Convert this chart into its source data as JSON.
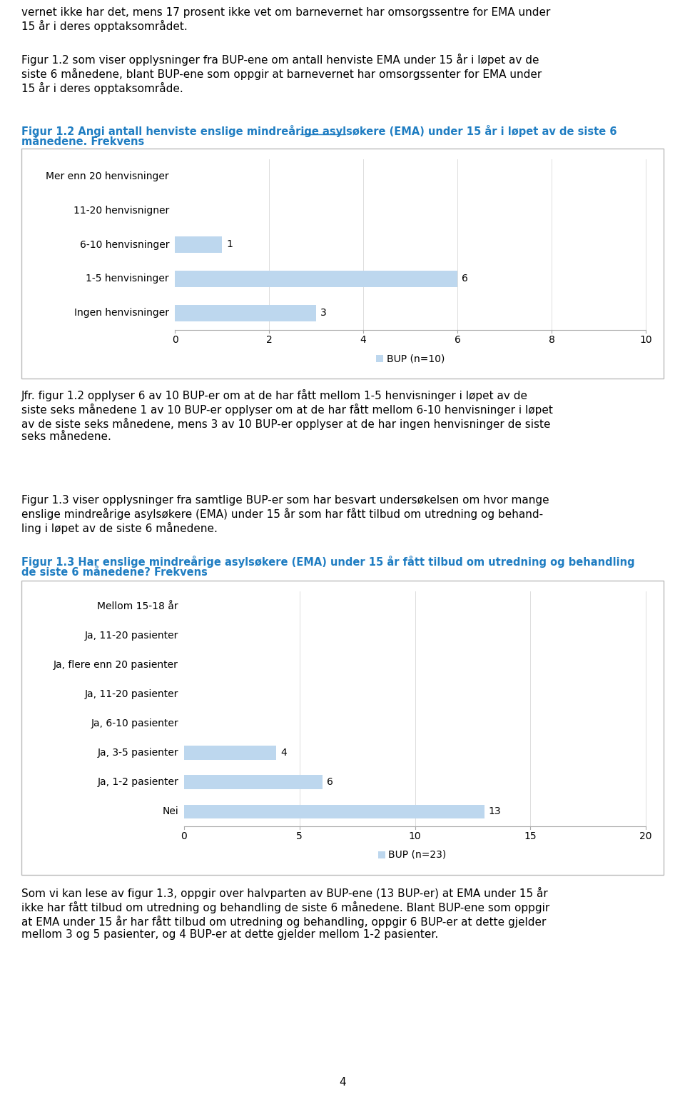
{
  "page_bg": "#ffffff",
  "text_color": "#000000",
  "link_color": "#1F7DC2",
  "chart1_categories": [
    "Mer enn 20 henvisninger",
    "11-20 henvisnigner",
    "6-10 henvisninger",
    "1-5 henvisninger",
    "Ingen henvisninger"
  ],
  "chart1_values": [
    0,
    0,
    1,
    6,
    3
  ],
  "chart1_xlim": [
    0,
    10
  ],
  "chart1_xticks": [
    0,
    2,
    4,
    6,
    8,
    10
  ],
  "chart1_legend": "BUP (n=10)",
  "chart1_bar_color": "#BDD7EE",
  "chart2_categories": [
    "Mellom 15-18 år",
    "Ja, 11-20 pasienter",
    "Ja, flere enn 20 pasienter",
    "Ja, 11-20 pasienter",
    "Ja, 6-10 pasienter",
    "Ja, 3-5 pasienter",
    "Ja, 1-2 pasienter",
    "Nei"
  ],
  "chart2_values": [
    0,
    0,
    0,
    0,
    0,
    4,
    6,
    13
  ],
  "chart2_xlim": [
    0,
    20
  ],
  "chart2_xticks": [
    0,
    5,
    10,
    15,
    20
  ],
  "chart2_legend": "BUP (n=23)",
  "chart2_bar_color": "#BDD7EE",
  "page_number": "4"
}
